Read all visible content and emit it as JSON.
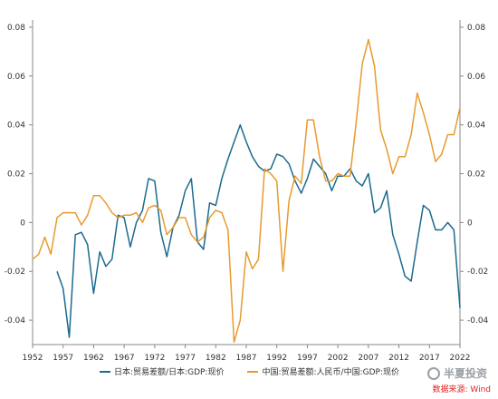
{
  "chart_data": {
    "type": "line",
    "x": [
      1952,
      1953,
      1954,
      1955,
      1956,
      1957,
      1958,
      1959,
      1960,
      1961,
      1962,
      1963,
      1964,
      1965,
      1966,
      1967,
      1968,
      1969,
      1970,
      1971,
      1972,
      1973,
      1974,
      1975,
      1976,
      1977,
      1978,
      1979,
      1980,
      1981,
      1982,
      1983,
      1984,
      1985,
      1986,
      1987,
      1988,
      1989,
      1990,
      1991,
      1992,
      1993,
      1994,
      1995,
      1996,
      1997,
      1998,
      1999,
      2000,
      2001,
      2002,
      2003,
      2004,
      2005,
      2006,
      2007,
      2008,
      2009,
      2010,
      2011,
      2012,
      2013,
      2014,
      2015,
      2016,
      2017,
      2018,
      2019,
      2020,
      2021,
      2022
    ],
    "series": [
      {
        "name": "日本:贸易差额/日本:GDP:现价",
        "color": "#1b6b8f",
        "values": [
          null,
          null,
          null,
          null,
          -0.02,
          -0.027,
          -0.047,
          -0.005,
          -0.004,
          -0.009,
          -0.029,
          -0.012,
          -0.018,
          -0.015,
          0.003,
          0.002,
          -0.01,
          0.0,
          0.005,
          0.018,
          0.017,
          -0.004,
          -0.014,
          -0.002,
          0.003,
          0.013,
          0.018,
          -0.008,
          -0.011,
          0.008,
          0.007,
          0.018,
          0.026,
          0.033,
          0.04,
          0.033,
          0.027,
          0.023,
          0.021,
          0.022,
          0.028,
          0.027,
          0.024,
          0.017,
          0.012,
          0.018,
          0.026,
          0.023,
          0.02,
          0.013,
          0.019,
          0.019,
          0.022,
          0.017,
          0.015,
          0.02,
          0.004,
          0.006,
          0.013,
          -0.005,
          -0.013,
          -0.022,
          -0.024,
          -0.008,
          0.007,
          0.005,
          -0.003,
          -0.003,
          0.0,
          -0.003,
          -0.035
        ]
      },
      {
        "name": "中国:贸易差额:人民币/中国:GDP:现价",
        "color": "#e89a2e",
        "values": [
          -0.015,
          -0.013,
          -0.006,
          -0.013,
          0.002,
          0.004,
          0.004,
          0.004,
          -0.001,
          0.003,
          0.011,
          0.011,
          0.008,
          0.004,
          0.002,
          0.003,
          0.003,
          0.004,
          0.0,
          0.006,
          0.007,
          0.005,
          -0.005,
          -0.002,
          0.002,
          0.002,
          -0.005,
          -0.008,
          -0.006,
          0.002,
          0.005,
          0.004,
          -0.003,
          -0.049,
          -0.04,
          -0.012,
          -0.019,
          -0.015,
          0.022,
          0.02,
          0.017,
          -0.02,
          0.009,
          0.019,
          0.016,
          0.042,
          0.042,
          0.027,
          0.017,
          0.017,
          0.02,
          0.019,
          0.019,
          0.041,
          0.065,
          0.075,
          0.064,
          0.038,
          0.03,
          0.02,
          0.027,
          0.027,
          0.036,
          0.053,
          0.045,
          0.036,
          0.025,
          0.028,
          0.036,
          0.036,
          0.047
        ]
      }
    ],
    "xticks": [
      "1952",
      "1957",
      "1962",
      "1967",
      "1972",
      "1977",
      "1982",
      "1987",
      "1992",
      "1997",
      "2002",
      "2007",
      "2012",
      "2017",
      "2022"
    ],
    "yticks": [
      "0.08",
      "0.06",
      "0.04",
      "0.02",
      "0",
      "-0.02",
      "-0.04"
    ],
    "ylim": [
      -0.05,
      0.08
    ],
    "xlim": [
      1952,
      2022
    ],
    "grid": false,
    "legend_position": "bottom"
  },
  "branding": {
    "name": "半夏投资",
    "source": "数据来源: Wind"
  }
}
